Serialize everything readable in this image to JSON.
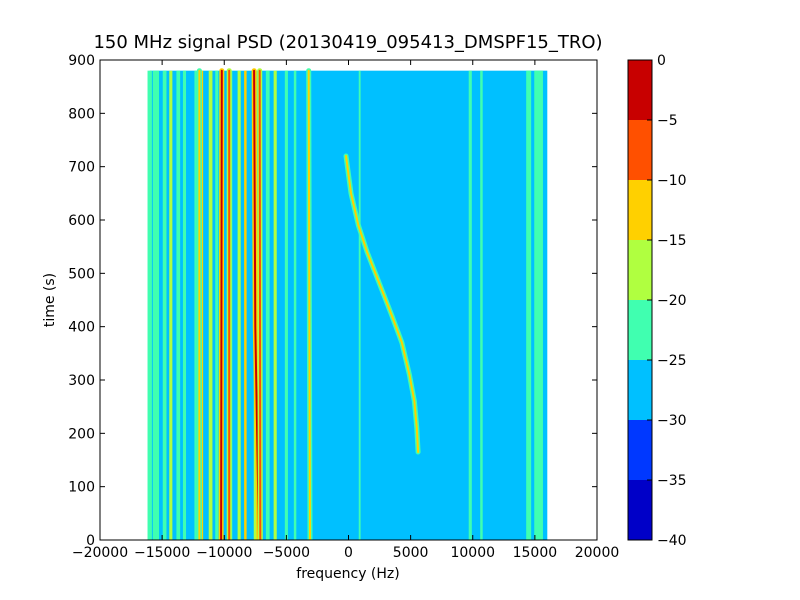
{
  "chart_data": {
    "type": "heatmap",
    "title": "150 MHz signal PSD (20130419_095413_DMSPF15_TRO)",
    "xlabel": "frequency (Hz)",
    "ylabel": "time (s)",
    "xlim": [
      -20000,
      20000
    ],
    "ylim": [
      0,
      900
    ],
    "x_ticks": [
      -20000,
      -15000,
      -10000,
      -5000,
      0,
      5000,
      10000,
      15000,
      20000
    ],
    "x_tick_labels": [
      "−20000",
      "−15000",
      "−10000",
      "−5000",
      "0",
      "5000",
      "10000",
      "15000",
      "20000"
    ],
    "y_ticks": [
      0,
      100,
      200,
      300,
      400,
      500,
      600,
      700,
      800,
      900
    ],
    "y_tick_labels": [
      "0",
      "100",
      "200",
      "300",
      "400",
      "500",
      "600",
      "700",
      "800",
      "900"
    ],
    "data_extent": {
      "freq_min": -16000,
      "freq_max": 16000,
      "time_min": 0,
      "time_max": 880
    },
    "background_level": -27.5,
    "colorbar": {
      "levels": [
        -40,
        -35,
        -30,
        -25,
        -20,
        -15,
        -10,
        -5,
        0
      ],
      "tick_labels": [
        "−40",
        "−35",
        "−30",
        "−25",
        "−20",
        "−15",
        "−10",
        "−5",
        "0"
      ],
      "colors": [
        "#0000c8",
        "#0038ff",
        "#00c0ff",
        "#40ffb0",
        "#b0ff40",
        "#ffd000",
        "#ff5000",
        "#c80000"
      ]
    },
    "noise_columns": [
      {
        "freq": -16000,
        "width": 350,
        "level": -22.5
      },
      {
        "freq": -15500,
        "width": 500,
        "level": -22.5
      },
      {
        "freq": -14800,
        "width": 300,
        "level": -22.5
      },
      {
        "freq": -14300,
        "width": 250,
        "level": -17.5
      },
      {
        "freq": -13700,
        "width": 300,
        "level": -22.5
      },
      {
        "freq": -13200,
        "width": 250,
        "level": -22.5
      },
      {
        "freq": -12300,
        "width": 200,
        "level": -22.5
      },
      {
        "freq": -11800,
        "width": 200,
        "level": -12.5
      },
      {
        "freq": -11100,
        "width": 300,
        "level": -17.5
      },
      {
        "freq": -10600,
        "width": 250,
        "level": -22.5
      },
      {
        "freq": -9500,
        "width": 300,
        "level": -22.5
      },
      {
        "freq": -8800,
        "width": 250,
        "level": -17.5
      },
      {
        "freq": -8300,
        "width": 200,
        "level": -12.5
      },
      {
        "freq": -7500,
        "width": 250,
        "level": -17.5
      },
      {
        "freq": -6500,
        "width": 300,
        "level": -22.5
      },
      {
        "freq": -5900,
        "width": 250,
        "level": -17.5
      },
      {
        "freq": -5000,
        "width": 250,
        "level": -22.5
      },
      {
        "freq": -4300,
        "width": 200,
        "level": -22.5
      },
      {
        "freq": 900,
        "width": 150,
        "level": -22.5
      },
      {
        "freq": 9800,
        "width": 250,
        "level": -22.5
      },
      {
        "freq": 10700,
        "width": 200,
        "level": -22.5
      },
      {
        "freq": 14500,
        "width": 400,
        "level": -22.5
      },
      {
        "freq": 15300,
        "width": 700,
        "level": -22.5
      }
    ],
    "bright_lines": [
      {
        "name": "line-a",
        "points": [
          [
            -12000,
            880
          ],
          [
            -12000,
            0
          ]
        ],
        "level": -12.5
      },
      {
        "name": "line-b",
        "points": [
          [
            -10200,
            880
          ],
          [
            -10250,
            0
          ]
        ],
        "level": -2.5
      },
      {
        "name": "line-c",
        "points": [
          [
            -9600,
            880
          ],
          [
            -9600,
            0
          ]
        ],
        "level": -7.5
      },
      {
        "name": "line-d",
        "points": [
          [
            -7600,
            880
          ],
          [
            -7500,
            400
          ],
          [
            -7200,
            0
          ]
        ],
        "level": -2.5
      },
      {
        "name": "line-e",
        "points": [
          [
            -7150,
            880
          ],
          [
            -7100,
            0
          ]
        ],
        "level": -7.5
      },
      {
        "name": "line-f",
        "points": [
          [
            -3200,
            880
          ],
          [
            -3100,
            0
          ]
        ],
        "level": -12.5
      },
      {
        "name": "doppler-track",
        "points": [
          [
            -200,
            720
          ],
          [
            200,
            650
          ],
          [
            800,
            590
          ],
          [
            1500,
            540
          ],
          [
            2500,
            480
          ],
          [
            3500,
            420
          ],
          [
            4300,
            370
          ],
          [
            4900,
            310
          ],
          [
            5300,
            260
          ],
          [
            5500,
            210
          ],
          [
            5600,
            165
          ]
        ],
        "level": -12.5
      }
    ]
  }
}
